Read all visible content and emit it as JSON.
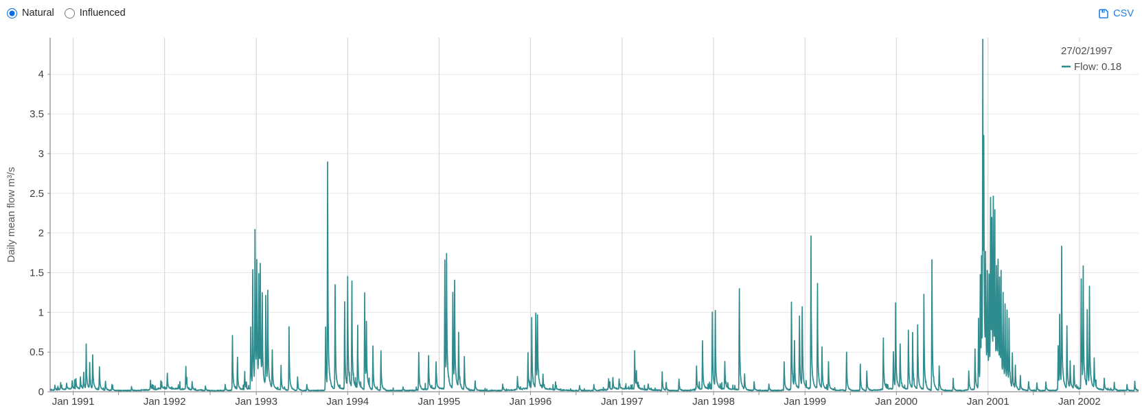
{
  "controls": {
    "natural_label": "Natural",
    "influenced_label": "Influenced",
    "selected": "Natural",
    "csv_label": "CSV"
  },
  "tooltip": {
    "date": "27/02/1997",
    "flow_label": "Flow: 0.18"
  },
  "colors": {
    "line": "#2e8b8e",
    "radio_accent": "#0b6ce0",
    "csv_blue": "#1e7fe8",
    "grid_horizontal": "#e7e7e7",
    "grid_vertical": "#d2d2d2",
    "axis": "#8f8f8f",
    "tick_label": "#3d3d3d",
    "axis_title": "#5a5a5a",
    "tooltip_text": "#4f4f4f"
  },
  "chart_data": {
    "type": "line",
    "title": "",
    "xlabel": "",
    "ylabel": "Daily mean flow m³/s",
    "y_ticks": [
      0,
      0.5,
      1,
      1.5,
      2,
      2.5,
      3,
      3.5,
      4
    ],
    "ylim": [
      0,
      4.46
    ],
    "x_ticks": [
      "Jan 1991",
      "Jan 1992",
      "Jan 1993",
      "Jan 1994",
      "Jan 1995",
      "Jan 1996",
      "Jan 1997",
      "Jan 1998",
      "Jan 1999",
      "Jan 2000",
      "Jan 2001",
      "Jan 2002"
    ],
    "x_range": [
      "1990-10-01",
      "2002-08-25"
    ],
    "grid": true,
    "legend_position": "top-right",
    "series": [
      {
        "name": "Flow",
        "color": "#2e8b8e",
        "units": "m³/s",
        "baseline_low_flow": 0.02,
        "peak_events": [
          [
            "1990-10-20",
            0.06
          ],
          [
            "1990-11-12",
            0.09
          ],
          [
            "1990-12-06",
            0.07
          ],
          [
            "1990-12-28",
            0.1
          ],
          [
            "1991-01-12",
            0.12
          ],
          [
            "1991-01-30",
            0.15
          ],
          [
            "1991-02-12",
            0.2
          ],
          [
            "1991-02-22",
            0.52
          ],
          [
            "1991-03-08",
            0.33
          ],
          [
            "1991-03-20",
            0.45
          ],
          [
            "1991-04-16",
            0.29
          ],
          [
            "1991-05-10",
            0.12
          ],
          [
            "1991-06-05",
            0.07
          ],
          [
            "1991-08-22",
            0.05
          ],
          [
            "1991-11-06",
            0.12
          ],
          [
            "1991-12-20",
            0.09
          ],
          [
            "1992-01-12",
            0.18
          ],
          [
            "1992-03-26",
            0.28
          ],
          [
            "1992-04-20",
            0.1
          ],
          [
            "1992-06-12",
            0.06
          ],
          [
            "1992-08-30",
            0.08
          ],
          [
            "1992-09-28",
            0.73
          ],
          [
            "1992-10-18",
            0.4
          ],
          [
            "1992-11-16",
            0.22
          ],
          [
            "1992-12-10",
            0.78
          ],
          [
            "1992-12-18",
            1.47
          ],
          [
            "1992-12-27",
            1.94
          ],
          [
            "1993-01-03",
            1.52
          ],
          [
            "1993-01-11",
            1.25
          ],
          [
            "1993-01-17",
            1.32
          ],
          [
            "1993-01-25",
            1.1
          ],
          [
            "1993-02-08",
            1.08
          ],
          [
            "1993-02-16",
            1.17
          ],
          [
            "1993-03-06",
            0.5
          ],
          [
            "1993-04-10",
            0.3
          ],
          [
            "1993-05-12",
            0.78
          ],
          [
            "1993-06-15",
            0.17
          ],
          [
            "1993-07-22",
            0.08
          ],
          [
            "1993-10-05",
            0.82
          ],
          [
            "1993-10-13",
            2.78
          ],
          [
            "1993-11-12",
            1.35
          ],
          [
            "1993-12-20",
            1.1
          ],
          [
            "1994-01-01",
            1.42
          ],
          [
            "1994-01-18",
            1.28
          ],
          [
            "1994-02-10",
            0.75
          ],
          [
            "1994-03-10",
            1.22
          ],
          [
            "1994-03-17",
            0.72
          ],
          [
            "1994-04-12",
            0.52
          ],
          [
            "1994-05-14",
            0.5
          ],
          [
            "1994-08-10",
            0.05
          ],
          [
            "1994-10-12",
            0.48
          ],
          [
            "1994-11-20",
            0.45
          ],
          [
            "1994-12-20",
            0.35
          ],
          [
            "1995-01-24",
            1.55
          ],
          [
            "1995-01-31",
            1.56
          ],
          [
            "1995-02-25",
            1.2
          ],
          [
            "1995-03-04",
            1.25
          ],
          [
            "1995-03-20",
            0.65
          ],
          [
            "1995-04-12",
            0.4
          ],
          [
            "1995-05-25",
            0.12
          ],
          [
            "1995-09-12",
            0.08
          ],
          [
            "1995-11-10",
            0.15
          ],
          [
            "1995-12-22",
            0.45
          ],
          [
            "1996-01-06",
            0.88
          ],
          [
            "1996-01-22",
            0.97
          ],
          [
            "1996-01-29",
            0.9
          ],
          [
            "1996-02-20",
            0.18
          ],
          [
            "1996-04-10",
            0.1
          ],
          [
            "1996-07-15",
            0.06
          ],
          [
            "1996-09-10",
            0.08
          ],
          [
            "1996-11-08",
            0.13
          ],
          [
            "1996-11-25",
            0.15
          ],
          [
            "1996-12-20",
            0.12
          ],
          [
            "1997-02-20",
            0.47
          ],
          [
            "1997-02-27",
            0.18
          ],
          [
            "1997-04-15",
            0.08
          ],
          [
            "1997-06-10",
            0.22
          ],
          [
            "1997-06-26",
            0.1
          ],
          [
            "1997-08-16",
            0.15
          ],
          [
            "1997-10-25",
            0.3
          ],
          [
            "1997-11-18",
            0.62
          ],
          [
            "1997-12-27",
            0.95
          ],
          [
            "1998-01-08",
            0.9
          ],
          [
            "1998-02-15",
            0.35
          ],
          [
            "1998-04-14",
            1.33
          ],
          [
            "1998-05-05",
            0.2
          ],
          [
            "1998-06-12",
            0.12
          ],
          [
            "1998-08-10",
            0.08
          ],
          [
            "1998-10-10",
            0.37
          ],
          [
            "1998-11-08",
            1.15
          ],
          [
            "1998-11-20",
            0.55
          ],
          [
            "1998-12-10",
            0.95
          ],
          [
            "1998-12-21",
            1.02
          ],
          [
            "1999-01-25",
            1.82
          ],
          [
            "1999-02-20",
            1.25
          ],
          [
            "1999-03-10",
            0.5
          ],
          [
            "1999-04-05",
            0.35
          ],
          [
            "1999-06-16",
            0.5
          ],
          [
            "1999-08-10",
            0.32
          ],
          [
            "1999-09-05",
            0.25
          ],
          [
            "1999-11-10",
            0.68
          ],
          [
            "1999-12-20",
            0.48
          ],
          [
            "1999-12-29",
            1.0
          ],
          [
            "2000-01-16",
            0.55
          ],
          [
            "2000-02-18",
            0.75
          ],
          [
            "2000-03-06",
            0.65
          ],
          [
            "2000-03-26",
            0.8
          ],
          [
            "2000-04-20",
            1.17
          ],
          [
            "2000-05-22",
            1.67
          ],
          [
            "2000-06-20",
            0.3
          ],
          [
            "2000-08-15",
            0.15
          ],
          [
            "2000-10-16",
            0.25
          ],
          [
            "2000-11-10",
            0.5
          ],
          [
            "2000-11-24",
            0.9
          ],
          [
            "2000-12-01",
            1.45
          ],
          [
            "2000-12-06",
            1.55
          ],
          [
            "2000-12-11",
            4.05
          ],
          [
            "2000-12-15",
            2.35
          ],
          [
            "2000-12-22",
            1.35
          ],
          [
            "2000-12-29",
            1.35
          ],
          [
            "2001-01-05",
            1.3
          ],
          [
            "2001-01-11",
            2.37
          ],
          [
            "2001-01-16",
            1.75
          ],
          [
            "2001-01-22",
            2.22
          ],
          [
            "2001-01-28",
            1.9
          ],
          [
            "2001-02-04",
            1.4
          ],
          [
            "2001-02-10",
            1.35
          ],
          [
            "2001-02-16",
            1.2
          ],
          [
            "2001-02-22",
            1.25
          ],
          [
            "2001-03-02",
            1.05
          ],
          [
            "2001-03-10",
            1.0
          ],
          [
            "2001-03-18",
            0.85
          ],
          [
            "2001-03-26",
            0.8
          ],
          [
            "2001-04-08",
            0.45
          ],
          [
            "2001-04-20",
            0.3
          ],
          [
            "2001-05-10",
            0.18
          ],
          [
            "2001-06-12",
            0.12
          ],
          [
            "2001-07-15",
            0.1
          ],
          [
            "2001-08-20",
            0.12
          ],
          [
            "2001-10-08",
            0.58
          ],
          [
            "2001-10-14",
            0.85
          ],
          [
            "2001-10-22",
            1.72
          ],
          [
            "2001-11-12",
            0.78
          ],
          [
            "2001-11-25",
            0.35
          ],
          [
            "2001-12-10",
            0.3
          ],
          [
            "2002-01-08",
            1.45
          ],
          [
            "2002-01-16",
            1.38
          ],
          [
            "2002-02-01",
            0.95
          ],
          [
            "2002-02-10",
            1.28
          ],
          [
            "2002-03-01",
            0.4
          ],
          [
            "2002-04-10",
            0.15
          ],
          [
            "2002-05-20",
            0.1
          ],
          [
            "2002-07-10",
            0.08
          ],
          [
            "2002-08-10",
            0.12
          ]
        ]
      }
    ]
  }
}
